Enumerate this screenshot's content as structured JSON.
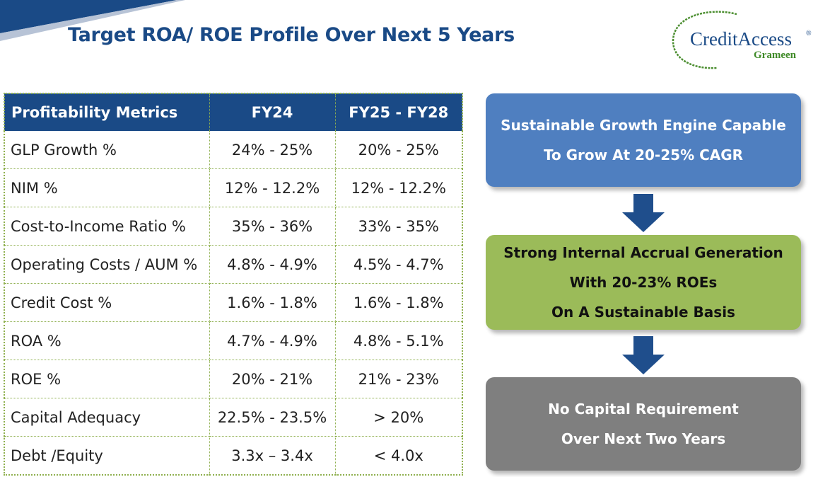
{
  "header": {
    "title": "Target ROA/ ROE Profile Over Next 5 Years"
  },
  "logo": {
    "name": "CreditAccess",
    "registered_mark": "®",
    "sub": "Grameen"
  },
  "table": {
    "headers": [
      "Profitability Metrics",
      "FY24",
      "FY25 - FY28"
    ],
    "rows": [
      [
        "GLP Growth %",
        "24% - 25%",
        "20% - 25%"
      ],
      [
        "NIM %",
        "12% - 12.2%",
        "12% - 12.2%"
      ],
      [
        "Cost-to-Income Ratio %",
        "35% - 36%",
        "33% - 35%"
      ],
      [
        "Operating Costs / AUM %",
        "4.8% - 4.9%",
        "4.5% - 4.7%"
      ],
      [
        "Credit Cost %",
        "1.6% - 1.8%",
        "1.6% - 1.8%"
      ],
      [
        "ROA %",
        "4.7% - 4.9%",
        "4.8% - 5.1%"
      ],
      [
        "ROE %",
        "20% - 21%",
        "21% - 23%"
      ],
      [
        "Capital Adequacy",
        "22.5% - 23.5%",
        "> 20%"
      ],
      [
        "Debt /Equity",
        "3.3x – 3.4x",
        "< 4.0x"
      ]
    ]
  },
  "flow": {
    "box1": {
      "lines": [
        "Sustainable Growth Engine Capable",
        "To Grow At 20-25% CAGR"
      ]
    },
    "box2": {
      "lines": [
        "Strong Internal Accrual Generation",
        "With 20-23% ROEs",
        "On A Sustainable Basis"
      ]
    },
    "box3": {
      "lines": [
        "No Capital Requirement",
        "Over Next Two Years"
      ]
    }
  },
  "colors": {
    "brand_blue": "#1a4a86",
    "table_border": "#8fb04f",
    "box_blue": "#4f7fc0",
    "box_green": "#9bbb59",
    "box_gray": "#7f7f7f",
    "arrow": "#1f4e8c",
    "logo_green": "#3f8a28"
  }
}
